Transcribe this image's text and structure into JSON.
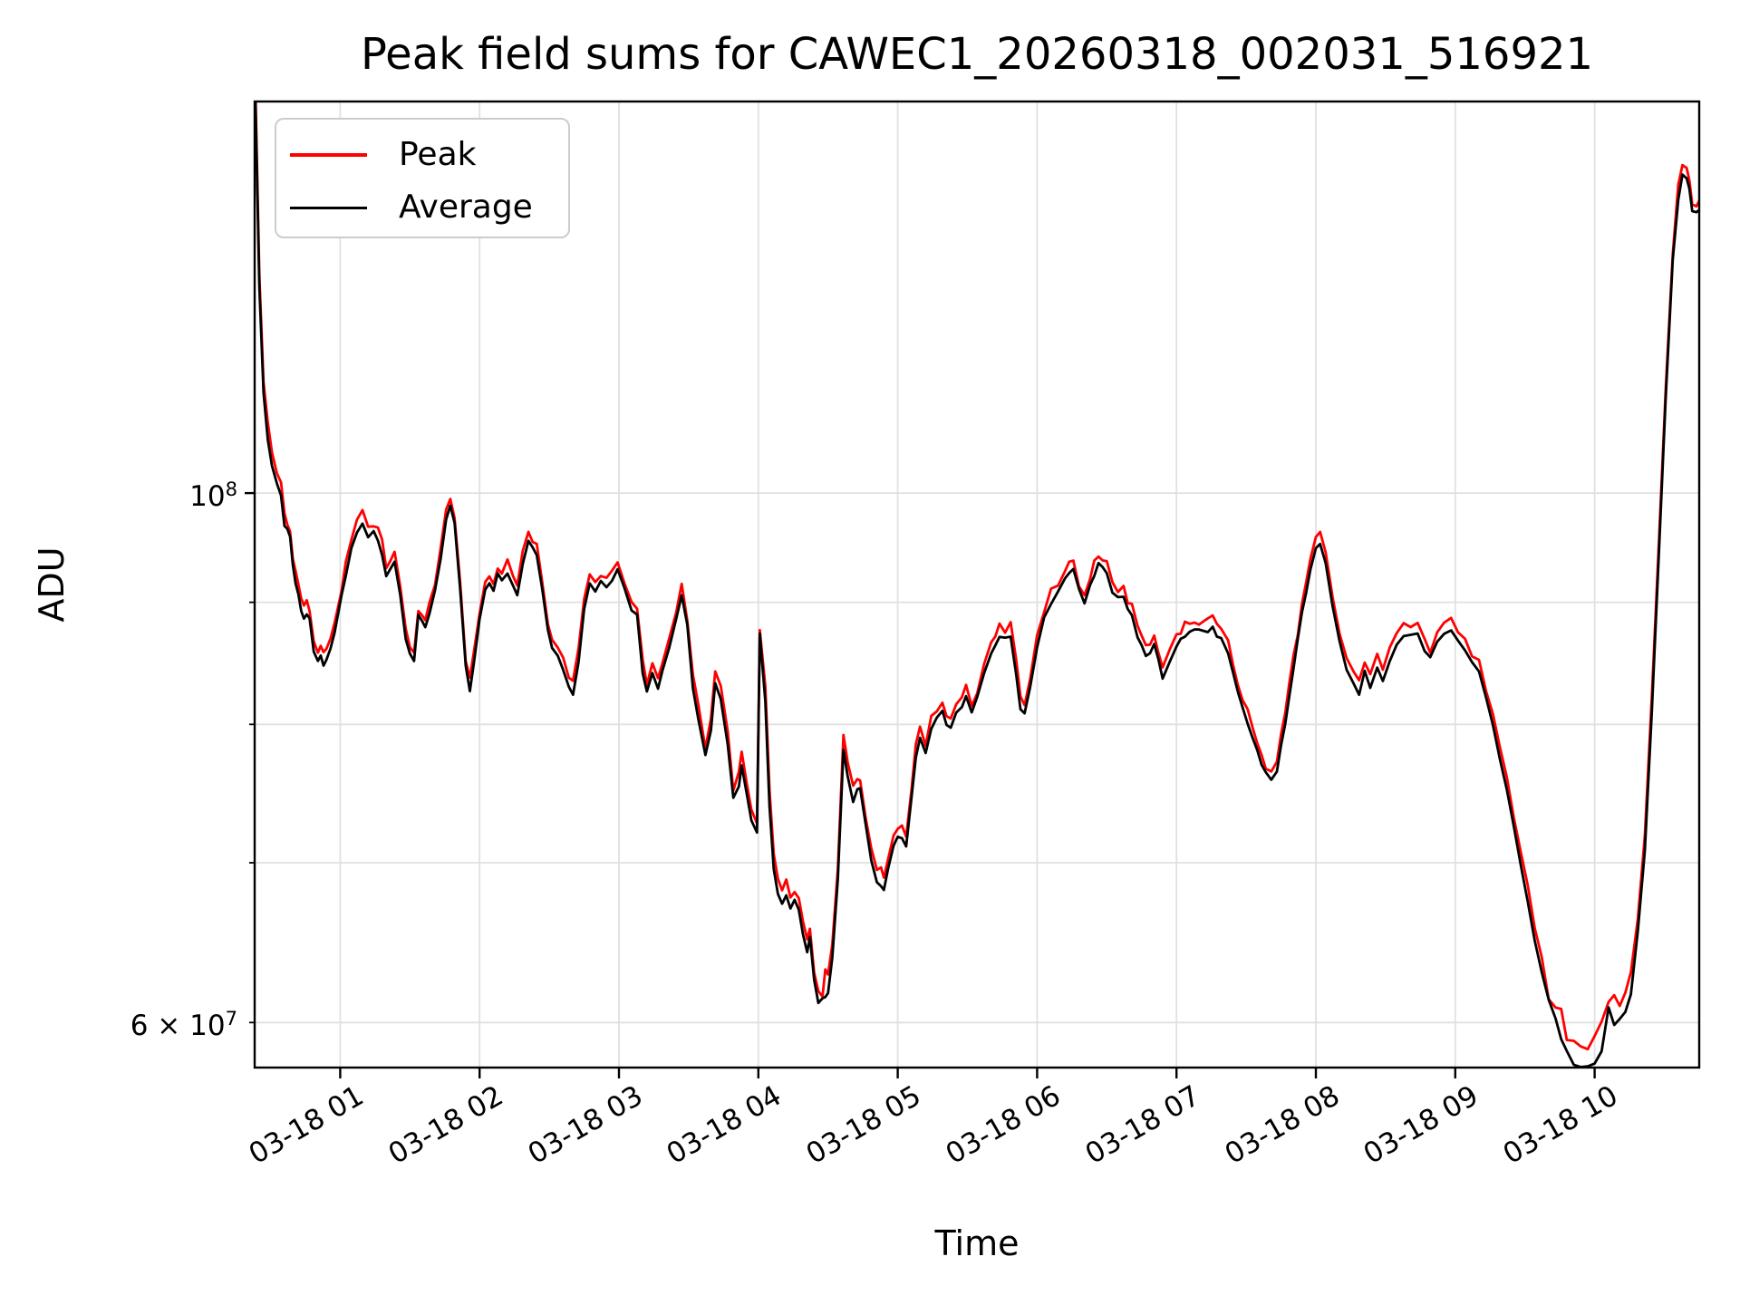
{
  "title": "Peak field sums for CAWEC1_20260318_002031_516921",
  "axes": {
    "xlabel": "Time",
    "ylabel": "ADU",
    "yscale": "log",
    "x_tick_labels": [
      {
        "t": 1,
        "label": "03-18 01"
      },
      {
        "t": 2,
        "label": "03-18 02"
      },
      {
        "t": 3,
        "label": "03-18 03"
      },
      {
        "t": 4,
        "label": "03-18 04"
      },
      {
        "t": 5,
        "label": "03-18 05"
      },
      {
        "t": 6,
        "label": "03-18 06"
      },
      {
        "t": 7,
        "label": "03-18 07"
      },
      {
        "t": 8,
        "label": "03-18 08"
      },
      {
        "t": 9,
        "label": "03-18 09"
      },
      {
        "t": 10,
        "label": "03-18 10"
      }
    ],
    "y_ticks": [
      {
        "v": 100000000,
        "major": true,
        "base": "10",
        "exp": "8"
      },
      {
        "v": 90000000,
        "major": false
      },
      {
        "v": 80000000,
        "major": false
      },
      {
        "v": 70000000,
        "major": false
      },
      {
        "v": 60000000,
        "major": false,
        "base": "6 × 10",
        "exp": "7"
      }
    ]
  },
  "legend": {
    "entries": [
      {
        "label": "Peak",
        "color": "#ff0000"
      },
      {
        "label": "Average",
        "color": "#000000"
      }
    ]
  },
  "colors": {
    "background": "#ffffff",
    "grid": "#e0e0e0",
    "spine": "#000000",
    "peak_line": "#ff0000",
    "average_line": "#000000"
  },
  "chart_data": {
    "type": "line",
    "title": "Peak field sums for CAWEC1_20260318_002031_516921",
    "xlabel": "Time",
    "ylabel": "ADU",
    "yscale": "log",
    "grid": true,
    "legend_position": "upper left",
    "x_unit": "hours since 2026-03-18 00:00",
    "value_unit": "ADU",
    "value_scale": 10000000,
    "xlim": [
      0.386,
      10.75
    ],
    "ylim": [
      57450000,
      145900000
    ],
    "x_hours": [
      0.392,
      0.42,
      0.45,
      0.48,
      0.51,
      0.545,
      0.575,
      0.6,
      0.62,
      0.64,
      0.66,
      0.68,
      0.7,
      0.72,
      0.74,
      0.76,
      0.78,
      0.81,
      0.84,
      0.86,
      0.88,
      0.9,
      0.93,
      0.96,
      1.01,
      1.04,
      1.08,
      1.12,
      1.16,
      1.2,
      1.24,
      1.27,
      1.3,
      1.33,
      1.36,
      1.39,
      1.43,
      1.47,
      1.5,
      1.53,
      1.56,
      1.59,
      1.61,
      1.64,
      1.68,
      1.72,
      1.76,
      1.79,
      1.82,
      1.86,
      1.9,
      1.93,
      1.96,
      2.0,
      2.04,
      2.07,
      2.1,
      2.13,
      2.16,
      2.2,
      2.24,
      2.27,
      2.31,
      2.35,
      2.38,
      2.41,
      2.45,
      2.49,
      2.52,
      2.56,
      2.6,
      2.64,
      2.67,
      2.71,
      2.75,
      2.79,
      2.83,
      2.87,
      2.91,
      2.95,
      2.99,
      3.04,
      3.09,
      3.13,
      3.17,
      3.2,
      3.24,
      3.28,
      3.31,
      3.36,
      3.41,
      3.45,
      3.49,
      3.53,
      3.57,
      3.62,
      3.66,
      3.69,
      3.73,
      3.78,
      3.82,
      3.86,
      3.88,
      3.92,
      3.95,
      3.99,
      4.01,
      4.05,
      4.08,
      4.11,
      4.14,
      4.17,
      4.2,
      4.23,
      4.26,
      4.29,
      4.32,
      4.35,
      4.37,
      4.4,
      4.43,
      4.46,
      4.48,
      4.5,
      4.53,
      4.57,
      4.61,
      4.64,
      4.68,
      4.71,
      4.73,
      4.77,
      4.81,
      4.85,
      4.88,
      4.9,
      4.93,
      4.97,
      5.0,
      5.03,
      5.06,
      5.1,
      5.13,
      5.16,
      5.2,
      5.24,
      5.28,
      5.32,
      5.35,
      5.38,
      5.42,
      5.46,
      5.49,
      5.53,
      5.57,
      5.62,
      5.67,
      5.73,
      5.77,
      5.81,
      5.85,
      5.88,
      5.91,
      5.95,
      6.0,
      6.05,
      6.1,
      6.15,
      6.2,
      6.26,
      6.3,
      6.34,
      6.38,
      6.44,
      6.5,
      6.54,
      6.58,
      6.62,
      6.65,
      6.68,
      6.72,
      6.78,
      6.84,
      6.9,
      6.95,
      7.0,
      7.06,
      7.13,
      7.19,
      7.26,
      7.32,
      7.37,
      7.44,
      7.51,
      7.58,
      7.64,
      7.68,
      7.72,
      7.78,
      7.84,
      7.9,
      7.96,
      8.0,
      8.03,
      8.07,
      8.12,
      8.17,
      8.22,
      8.27,
      8.31,
      8.35,
      8.39,
      8.44,
      8.48,
      8.53,
      8.58,
      8.63,
      8.68,
      8.73,
      8.78,
      8.82,
      8.87,
      8.92,
      8.97,
      9.02,
      9.07,
      9.12,
      9.17,
      9.22,
      9.27,
      9.32,
      9.37,
      9.42,
      9.47,
      9.52,
      9.57,
      9.62,
      9.67,
      9.72,
      9.76,
      9.8,
      9.85,
      9.9,
      9.95,
      10.0,
      10.05,
      10.1,
      10.14,
      10.18,
      10.22,
      10.26,
      10.31,
      10.36,
      10.41,
      10.46,
      10.51,
      10.56,
      10.6,
      10.63,
      10.66,
      10.68,
      10.7,
      10.73,
      10.75
    ],
    "series": [
      {
        "name": "Peak",
        "color": "#ff0000",
        "values_e7": [
          14.71,
          12.32,
          11.12,
          10.67,
          10.37,
          10.2,
          10.1,
          9.78,
          9.72,
          9.68,
          9.42,
          9.25,
          9.14,
          9.02,
          8.96,
          8.98,
          8.92,
          8.68,
          8.58,
          8.64,
          8.55,
          8.61,
          8.7,
          8.82,
          9.14,
          9.32,
          9.56,
          9.72,
          9.8,
          9.66,
          9.72,
          9.63,
          9.52,
          9.3,
          9.38,
          9.45,
          9.15,
          8.78,
          8.63,
          8.58,
          8.96,
          8.92,
          8.86,
          8.98,
          9.18,
          9.48,
          9.83,
          9.96,
          9.78,
          9.18,
          8.53,
          8.36,
          8.58,
          8.93,
          9.18,
          9.26,
          9.2,
          9.32,
          9.26,
          9.34,
          9.23,
          9.16,
          9.43,
          9.64,
          9.56,
          9.52,
          9.18,
          8.83,
          8.68,
          8.63,
          8.5,
          8.38,
          8.33,
          8.58,
          9.03,
          9.23,
          9.18,
          9.26,
          9.2,
          9.28,
          9.35,
          9.18,
          9.02,
          8.96,
          8.48,
          8.33,
          8.5,
          8.38,
          8.48,
          8.68,
          8.93,
          9.13,
          8.88,
          8.38,
          8.13,
          7.83,
          8.03,
          8.41,
          8.28,
          7.93,
          7.52,
          7.63,
          7.78,
          7.53,
          7.38,
          7.29,
          8.8,
          8.28,
          7.48,
          7.03,
          6.88,
          6.8,
          6.86,
          6.78,
          6.83,
          6.76,
          6.6,
          6.52,
          6.58,
          6.33,
          6.23,
          6.2,
          6.26,
          6.22,
          6.43,
          6.98,
          7.89,
          7.68,
          7.52,
          7.58,
          7.6,
          7.33,
          7.08,
          6.96,
          6.94,
          6.9,
          7.03,
          7.18,
          7.26,
          7.26,
          7.2,
          7.53,
          7.83,
          7.98,
          7.85,
          8.03,
          8.13,
          8.19,
          8.08,
          8.07,
          8.18,
          8.23,
          8.28,
          8.17,
          8.28,
          8.48,
          8.66,
          8.8,
          8.76,
          8.79,
          8.48,
          8.19,
          8.15,
          8.38,
          8.68,
          8.93,
          9.08,
          9.18,
          9.28,
          9.36,
          9.18,
          9.08,
          9.23,
          9.44,
          9.33,
          9.18,
          9.11,
          9.14,
          9.03,
          8.98,
          8.78,
          8.61,
          8.72,
          8.46,
          8.58,
          8.7,
          8.8,
          8.86,
          8.83,
          8.85,
          8.76,
          8.65,
          8.33,
          8.1,
          7.88,
          7.7,
          7.66,
          7.73,
          8.08,
          8.53,
          8.98,
          9.38,
          9.58,
          9.6,
          9.43,
          9.03,
          8.73,
          8.53,
          8.4,
          8.33,
          8.5,
          8.36,
          8.53,
          8.43,
          8.58,
          8.73,
          8.8,
          8.78,
          8.81,
          8.68,
          8.6,
          8.73,
          8.8,
          8.83,
          8.76,
          8.68,
          8.58,
          8.48,
          8.28,
          8.08,
          7.83,
          7.58,
          7.33,
          7.08,
          6.83,
          6.58,
          6.38,
          6.2,
          6.11,
          6.01,
          5.95,
          5.91,
          5.89,
          5.87,
          5.9,
          5.96,
          6.18,
          6.11,
          6.13,
          6.21,
          6.28,
          6.63,
          7.18,
          8.18,
          9.48,
          11.12,
          12.62,
          13.42,
          13.69,
          13.64,
          13.52,
          13.27,
          13.24,
          13.26
        ]
      },
      {
        "name": "Average",
        "color": "#000000",
        "values_e7": [
          14.59,
          12.2,
          11.0,
          10.55,
          10.25,
          10.08,
          10.0,
          9.7,
          9.64,
          9.6,
          9.34,
          9.17,
          9.06,
          8.94,
          8.88,
          8.9,
          8.84,
          8.6,
          8.5,
          8.56,
          8.47,
          8.53,
          8.62,
          8.74,
          9.06,
          9.24,
          9.48,
          9.64,
          9.72,
          9.58,
          9.64,
          9.55,
          9.44,
          9.22,
          9.3,
          9.37,
          9.07,
          8.7,
          8.55,
          8.5,
          8.88,
          8.84,
          8.78,
          8.9,
          9.1,
          9.4,
          9.75,
          9.88,
          9.7,
          9.1,
          8.45,
          8.28,
          8.5,
          8.85,
          9.1,
          9.18,
          9.12,
          9.24,
          9.18,
          9.26,
          9.15,
          9.08,
          9.35,
          9.56,
          9.48,
          9.44,
          9.1,
          8.75,
          8.6,
          8.55,
          8.42,
          8.3,
          8.25,
          8.5,
          8.95,
          9.15,
          9.1,
          9.18,
          9.12,
          9.2,
          9.27,
          9.1,
          8.94,
          8.88,
          8.4,
          8.25,
          8.42,
          8.3,
          8.4,
          8.6,
          8.85,
          9.05,
          8.8,
          8.3,
          8.05,
          7.75,
          7.95,
          8.33,
          8.2,
          7.85,
          7.44,
          7.55,
          7.7,
          7.45,
          7.3,
          7.21,
          8.72,
          8.2,
          7.4,
          6.95,
          6.8,
          6.72,
          6.78,
          6.7,
          6.75,
          6.68,
          6.52,
          6.44,
          6.5,
          6.25,
          6.15,
          6.12,
          6.18,
          6.14,
          6.35,
          6.9,
          7.81,
          7.6,
          7.44,
          7.5,
          7.52,
          7.25,
          7.0,
          6.88,
          6.86,
          6.82,
          6.95,
          7.1,
          7.18,
          7.18,
          7.12,
          7.45,
          7.75,
          7.9,
          7.77,
          7.95,
          8.05,
          8.11,
          8.0,
          7.99,
          8.1,
          8.15,
          8.2,
          8.09,
          8.2,
          8.4,
          8.58,
          8.72,
          8.68,
          8.71,
          8.4,
          8.11,
          8.07,
          8.3,
          8.6,
          8.85,
          9.0,
          9.1,
          9.2,
          9.28,
          9.1,
          9.0,
          9.15,
          9.36,
          9.25,
          9.1,
          9.03,
          9.06,
          8.95,
          8.9,
          8.7,
          8.53,
          8.64,
          8.38,
          8.5,
          8.62,
          8.72,
          8.78,
          8.75,
          8.77,
          8.68,
          8.57,
          8.25,
          8.02,
          7.8,
          7.62,
          7.58,
          7.65,
          8.0,
          8.45,
          8.9,
          9.3,
          9.5,
          9.52,
          9.35,
          8.95,
          8.65,
          8.45,
          8.32,
          8.25,
          8.42,
          8.28,
          8.45,
          8.35,
          8.5,
          8.65,
          8.72,
          8.7,
          8.73,
          8.6,
          8.52,
          8.65,
          8.72,
          8.75,
          8.68,
          8.6,
          8.5,
          8.4,
          8.2,
          8.0,
          7.75,
          7.5,
          7.25,
          7.0,
          6.75,
          6.5,
          6.3,
          6.12,
          5.98,
          5.88,
          5.82,
          5.78,
          5.76,
          5.74,
          5.77,
          5.83,
          6.05,
          5.98,
          6.0,
          6.08,
          6.2,
          6.55,
          7.1,
          8.1,
          9.4,
          11.0,
          12.5,
          13.3,
          13.57,
          13.52,
          13.4,
          13.15,
          13.12,
          13.14
        ]
      }
    ]
  }
}
